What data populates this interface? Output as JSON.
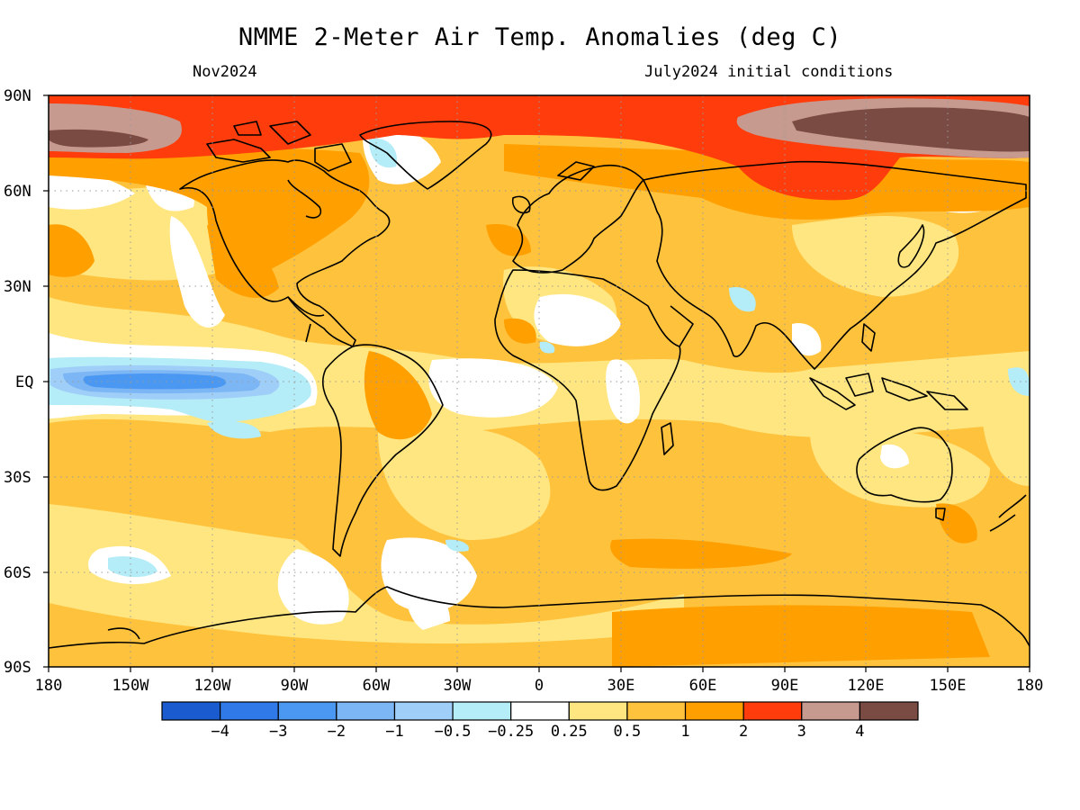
{
  "title": "NMME 2-Meter Air Temp. Anomalies (deg C)",
  "subtitle_left": "Nov2024",
  "subtitle_right": "July2024 initial conditions",
  "lat_labels": [
    "90N",
    "60N",
    "30N",
    "EQ",
    "30S",
    "60S",
    "90S"
  ],
  "lon_labels": [
    "180",
    "150W",
    "120W",
    "90W",
    "60W",
    "30W",
    "0",
    "30E",
    "60E",
    "90E",
    "120E",
    "150E",
    "180"
  ],
  "colorbar": {
    "colors": [
      "#1a5ccf",
      "#2f79e8",
      "#4b98f2",
      "#7db6f5",
      "#9fcef8",
      "#b4ecf7",
      "#ffffff",
      "#ffe680",
      "#ffc23d",
      "#ff9f00",
      "#ff3c0c",
      "#c79a90",
      "#7a4b42"
    ],
    "labels": [
      "−4",
      "−3",
      "−2",
      "−1",
      "−0.5",
      "−0.25",
      "0.25",
      "0.5",
      "1",
      "2",
      "3",
      "4"
    ]
  },
  "colors": {
    "ocean_base": "#ffc23d",
    "land_base": "#ffc23d",
    "coast": "#000000"
  }
}
